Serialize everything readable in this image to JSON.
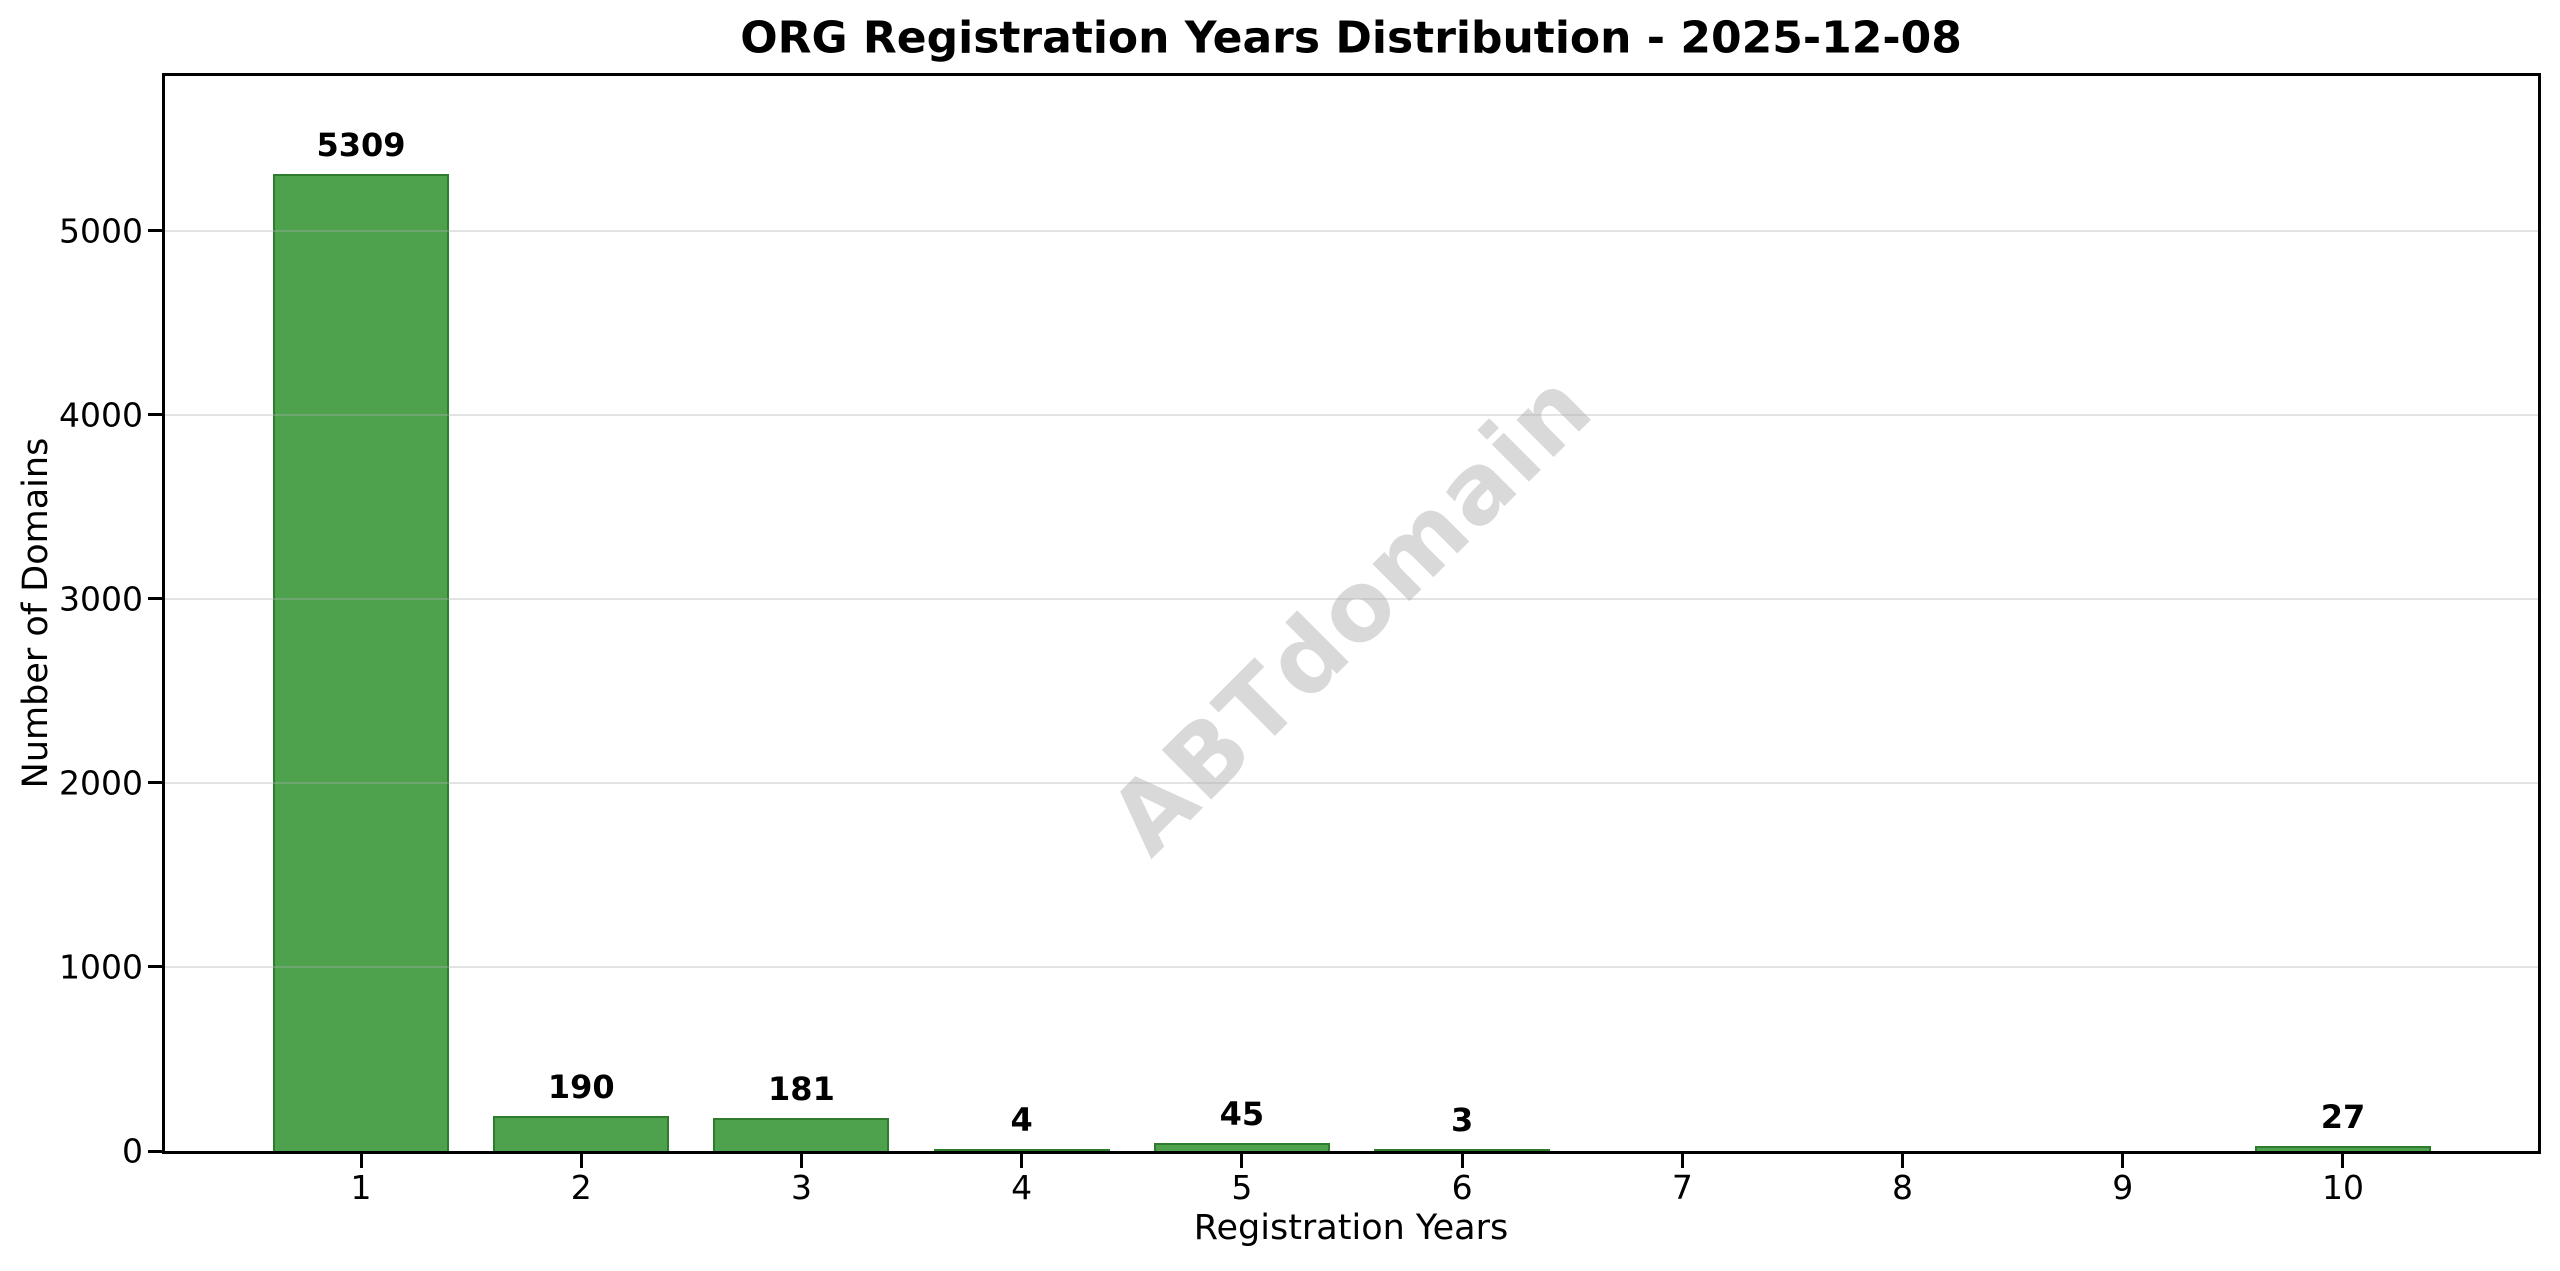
{
  "chart_data": {
    "type": "bar",
    "title": "ORG Registration Years Distribution - 2025-12-08",
    "xlabel": "Registration Years",
    "ylabel": "Number of Domains",
    "watermark": "ABTdomain",
    "categories": [
      "1",
      "2",
      "3",
      "4",
      "5",
      "6",
      "7",
      "8",
      "9",
      "10"
    ],
    "values": [
      5309,
      190,
      181,
      4,
      45,
      3,
      0,
      0,
      0,
      27
    ],
    "bar_value_labels": [
      "5309",
      "190",
      "181",
      "4",
      "45",
      "3",
      "",
      "",
      "",
      "27"
    ],
    "yticks": [
      0,
      1000,
      2000,
      3000,
      4000,
      5000
    ],
    "ylim": [
      0,
      5840
    ],
    "grid": "horizontal",
    "legend": "none",
    "colors": {
      "background": "#ffffff",
      "bar_fill": "#4ea24e",
      "bar_edge": "#2e7d2e",
      "gridline": "rgba(176,176,176,0.35)",
      "axis": "#000000",
      "text": "#000000",
      "watermark": "#d9d9d9"
    }
  }
}
